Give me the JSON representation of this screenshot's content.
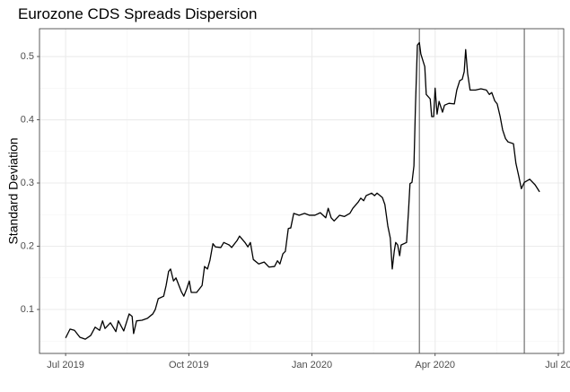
{
  "chart_data": {
    "type": "line",
    "title": "Eurozone CDS Spreads Dispersion",
    "ylabel": "Standard Deviation",
    "x": [
      2019.5,
      2019.509,
      2019.518,
      2019.529,
      2019.54,
      2019.551,
      2019.56,
      2019.569,
      2019.575,
      2019.58,
      2019.591,
      2019.602,
      2019.607,
      2019.618,
      2019.629,
      2019.635,
      2019.638,
      2019.644,
      2019.655,
      2019.666,
      2019.677,
      2019.682,
      2019.688,
      2019.699,
      2019.704,
      2019.709,
      2019.713,
      2019.719,
      2019.724,
      2019.73,
      2019.735,
      2019.74,
      2019.746,
      2019.751,
      2019.755,
      2019.766,
      2019.777,
      2019.782,
      2019.788,
      2019.793,
      2019.799,
      2019.804,
      2019.815,
      2019.821,
      2019.832,
      2019.837,
      2019.848,
      2019.853,
      2019.864,
      2019.87,
      2019.875,
      2019.881,
      2019.892,
      2019.903,
      2019.913,
      2019.924,
      2019.93,
      2019.935,
      2019.941,
      2019.946,
      2019.952,
      2019.957,
      2019.963,
      2019.974,
      2019.985,
      2019.995,
      2020.006,
      2020.017,
      2020.028,
      2020.033,
      2020.039,
      2020.045,
      2020.056,
      2020.066,
      2020.077,
      2020.083,
      2020.094,
      2020.099,
      2020.105,
      2020.11,
      2020.121,
      2020.127,
      2020.132,
      2020.143,
      2020.148,
      2020.154,
      2020.159,
      2020.163,
      2020.167,
      2020.17,
      2020.174,
      2020.178,
      2020.181,
      2020.192,
      2020.196,
      2020.199,
      2020.203,
      2020.207,
      2020.21,
      2020.214,
      2020.218,
      2020.221,
      2020.229,
      2020.232,
      2020.24,
      2020.243,
      2020.247,
      2020.25,
      2020.254,
      2020.258,
      2020.265,
      2020.269,
      2020.278,
      2020.289,
      2020.294,
      2020.3,
      2020.305,
      2020.309,
      2020.312,
      2020.316,
      2020.321,
      2020.332,
      2020.343,
      2020.354,
      2020.36,
      2020.365,
      2020.371,
      2020.376,
      2020.382,
      2020.387,
      2020.393,
      2020.398,
      2020.409,
      2020.414,
      2020.42,
      2020.425,
      2020.431,
      2020.442,
      2020.453,
      2020.462
    ],
    "series": [
      {
        "color": "#000000",
        "values": [
          0.055,
          0.069,
          0.067,
          0.056,
          0.053,
          0.059,
          0.072,
          0.067,
          0.082,
          0.07,
          0.079,
          0.065,
          0.082,
          0.066,
          0.093,
          0.089,
          0.062,
          0.082,
          0.083,
          0.086,
          0.093,
          0.1,
          0.117,
          0.121,
          0.138,
          0.16,
          0.164,
          0.145,
          0.15,
          0.138,
          0.128,
          0.121,
          0.133,
          0.145,
          0.127,
          0.127,
          0.138,
          0.168,
          0.164,
          0.178,
          0.204,
          0.199,
          0.198,
          0.206,
          0.202,
          0.198,
          0.209,
          0.216,
          0.206,
          0.199,
          0.206,
          0.179,
          0.172,
          0.175,
          0.167,
          0.168,
          0.177,
          0.172,
          0.188,
          0.192,
          0.228,
          0.229,
          0.252,
          0.249,
          0.252,
          0.249,
          0.249,
          0.253,
          0.245,
          0.26,
          0.245,
          0.24,
          0.249,
          0.247,
          0.252,
          0.26,
          0.27,
          0.276,
          0.272,
          0.28,
          0.284,
          0.28,
          0.284,
          0.277,
          0.266,
          0.232,
          0.213,
          0.164,
          0.192,
          0.206,
          0.202,
          0.185,
          0.202,
          0.206,
          0.256,
          0.299,
          0.301,
          0.327,
          0.419,
          0.518,
          0.522,
          0.504,
          0.484,
          0.44,
          0.433,
          0.405,
          0.405,
          0.45,
          0.409,
          0.429,
          0.412,
          0.423,
          0.426,
          0.425,
          0.447,
          0.462,
          0.464,
          0.476,
          0.511,
          0.473,
          0.447,
          0.447,
          0.449,
          0.447,
          0.44,
          0.443,
          0.43,
          0.425,
          0.405,
          0.384,
          0.37,
          0.365,
          0.362,
          0.331,
          0.31,
          0.291,
          0.301,
          0.306,
          0.297,
          0.286
        ]
      }
    ],
    "vlines": [
      2020.218,
      2020.431
    ],
    "xlim": [
      2019.447,
      2020.511
    ],
    "xticks": [
      {
        "value": 2019.5,
        "label": "Jul 2019"
      },
      {
        "value": 2019.75,
        "label": "Oct 2019"
      },
      {
        "value": 2020.0,
        "label": "Jan 2020"
      },
      {
        "value": 2020.25,
        "label": "Apr 2020"
      },
      {
        "value": 2020.5,
        "label": "Jul 20"
      }
    ],
    "x_minor_ticks": [
      2019.625,
      2019.875,
      2020.125,
      2020.375
    ],
    "ylim": [
      0.0305,
      0.544
    ],
    "yticks": [
      0.1,
      0.2,
      0.3,
      0.4,
      0.5
    ],
    "y_minor_ticks": [
      0.05,
      0.15,
      0.25,
      0.35,
      0.45
    ],
    "grid": true
  }
}
